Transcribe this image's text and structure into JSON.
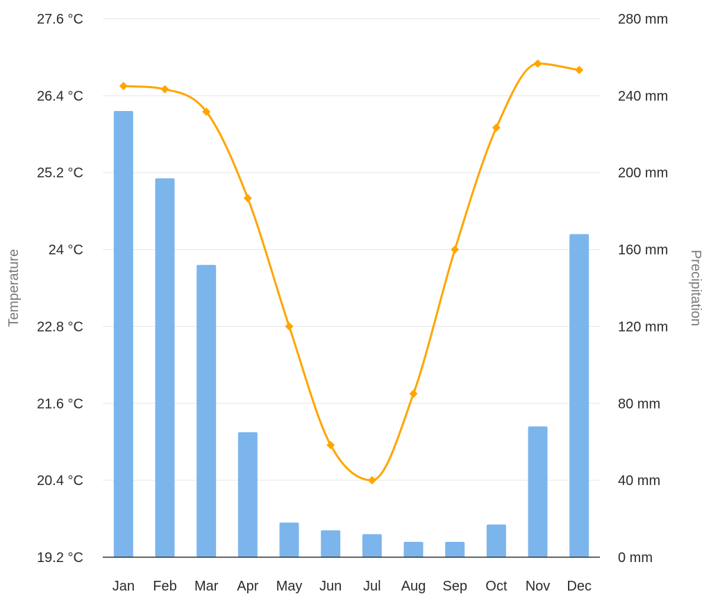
{
  "chart_data": {
    "type": "bar+line",
    "categories": [
      "Jan",
      "Feb",
      "Mar",
      "Apr",
      "May",
      "Jun",
      "Jul",
      "Aug",
      "Sep",
      "Oct",
      "Nov",
      "Dec"
    ],
    "series": [
      {
        "kind": "bar",
        "axis": "right",
        "color": "#7cb5ec",
        "values": [
          232,
          197,
          152,
          65,
          18,
          14,
          12,
          8,
          8,
          17,
          68,
          168
        ]
      },
      {
        "kind": "line",
        "axis": "left",
        "color": "#ffa500",
        "marker": "diamond",
        "values": [
          26.55,
          26.5,
          26.15,
          24.8,
          22.8,
          20.95,
          20.4,
          21.75,
          24.0,
          25.9,
          26.9,
          26.8
        ]
      }
    ],
    "left_axis": {
      "label": "Temperature",
      "ylim": [
        19.2,
        27.6
      ],
      "ticks": [
        "19.2 °C",
        "20.4 °C",
        "21.6 °C",
        "22.8 °C",
        "24 °C",
        "25.2 °C",
        "26.4 °C",
        "27.6 °C"
      ]
    },
    "right_axis": {
      "label": "Precipitation",
      "ylim": [
        0,
        280
      ],
      "ticks": [
        "0 mm",
        "40 mm",
        "80 mm",
        "120 mm",
        "160 mm",
        "200 mm",
        "240 mm",
        "280 mm"
      ]
    },
    "grid": true,
    "legend": "none"
  }
}
